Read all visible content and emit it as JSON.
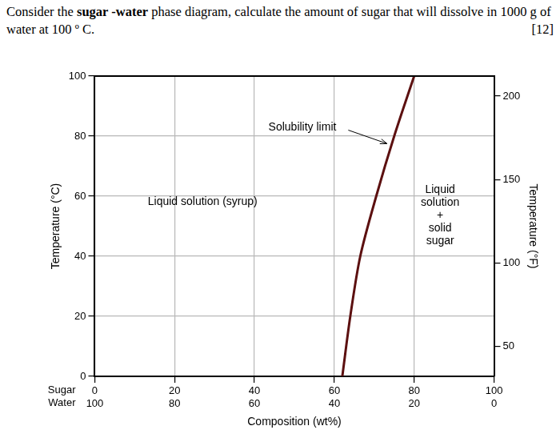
{
  "question": {
    "parts": [
      {
        "text": "Consider the "
      },
      {
        "text": "sugar -water",
        "bold": true
      },
      {
        "text": " phase diagram, calculate the amount of sugar that will dissolve in 1000 g of water at 100 º C."
      }
    ],
    "marks": "[12]"
  },
  "chart_data": {
    "type": "line",
    "x": [
      62,
      64,
      66.5,
      70.5,
      75,
      80
    ],
    "values": [
      0,
      20,
      40,
      60,
      80,
      100
    ],
    "color": "#5c1010",
    "xlabel": "Composition (wt%)",
    "x_rows": [
      "Sugar",
      "Water"
    ],
    "ylabel": "Temperature (°C)",
    "y2label": "Temperature (°F)",
    "xlim": [
      0,
      100
    ],
    "xticks": [
      {
        "value": 0,
        "label": [
          "0",
          "100"
        ]
      },
      {
        "value": 20,
        "label": [
          "20",
          "80"
        ]
      },
      {
        "value": 40,
        "label": [
          "40",
          "60"
        ]
      },
      {
        "value": 60,
        "label": [
          "60",
          "40"
        ]
      },
      {
        "value": 80,
        "label": [
          "80",
          "20"
        ]
      },
      {
        "value": 100,
        "label": [
          "100",
          "0"
        ]
      }
    ],
    "ylim": [
      0,
      100
    ],
    "yticks": [
      0,
      20,
      40,
      60,
      80,
      100
    ],
    "y2lim": [
      32,
      212
    ],
    "y2ticks": [
      50,
      100,
      150,
      200
    ],
    "grid": true,
    "annotations": [
      {
        "text": "Solubility limit"
      },
      {
        "text": "Liquid solution (syrup)"
      },
      {
        "text": [
          "Liquid",
          "solution",
          "+",
          "solid",
          "sugar"
        ]
      }
    ]
  }
}
